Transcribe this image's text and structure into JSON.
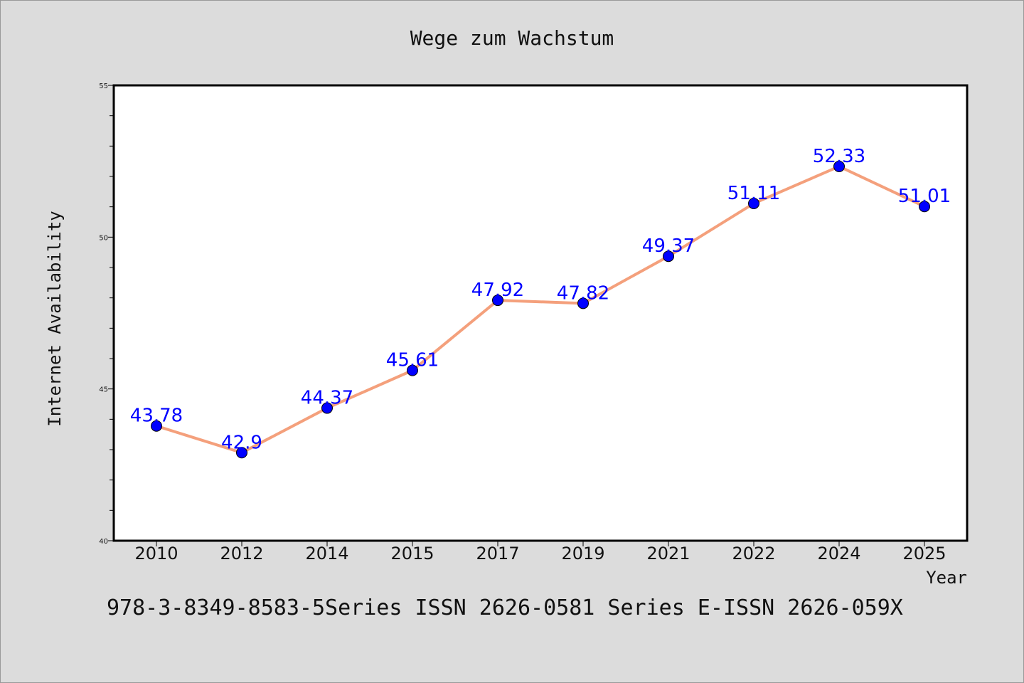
{
  "chart_data": {
    "type": "line",
    "title": "Wege zum Wachstum",
    "xlabel": "Year",
    "ylabel": "Internet Availability",
    "categories": [
      "2010",
      "2012",
      "2014",
      "2015",
      "2017",
      "2019",
      "2021",
      "2022",
      "2024",
      "2025"
    ],
    "series": [
      {
        "values": [
          43.78,
          42.9,
          44.37,
          45.61,
          47.92,
          47.82,
          49.37,
          51.11,
          52.33,
          51.01
        ],
        "data_labels": [
          "43.78",
          "42.9",
          "44.37",
          "45.61",
          "47.92",
          "47.82",
          "49.37",
          "51.11",
          "52.33",
          "51.01"
        ],
        "line_color": "#f4a07c",
        "marker_color": "#0000ff"
      }
    ],
    "ylim": [
      40,
      55
    ],
    "yticks": [
      "40",
      "45",
      "50",
      "55"
    ],
    "grid": false,
    "legend": "none"
  },
  "footer": "978-3-8349-8583-5Series ISSN 2626-0581 Series E-ISSN 2626-059X",
  "colors": {
    "background": "#dcdcdc",
    "plot_background": "#ffffff",
    "axis": "#000000"
  }
}
